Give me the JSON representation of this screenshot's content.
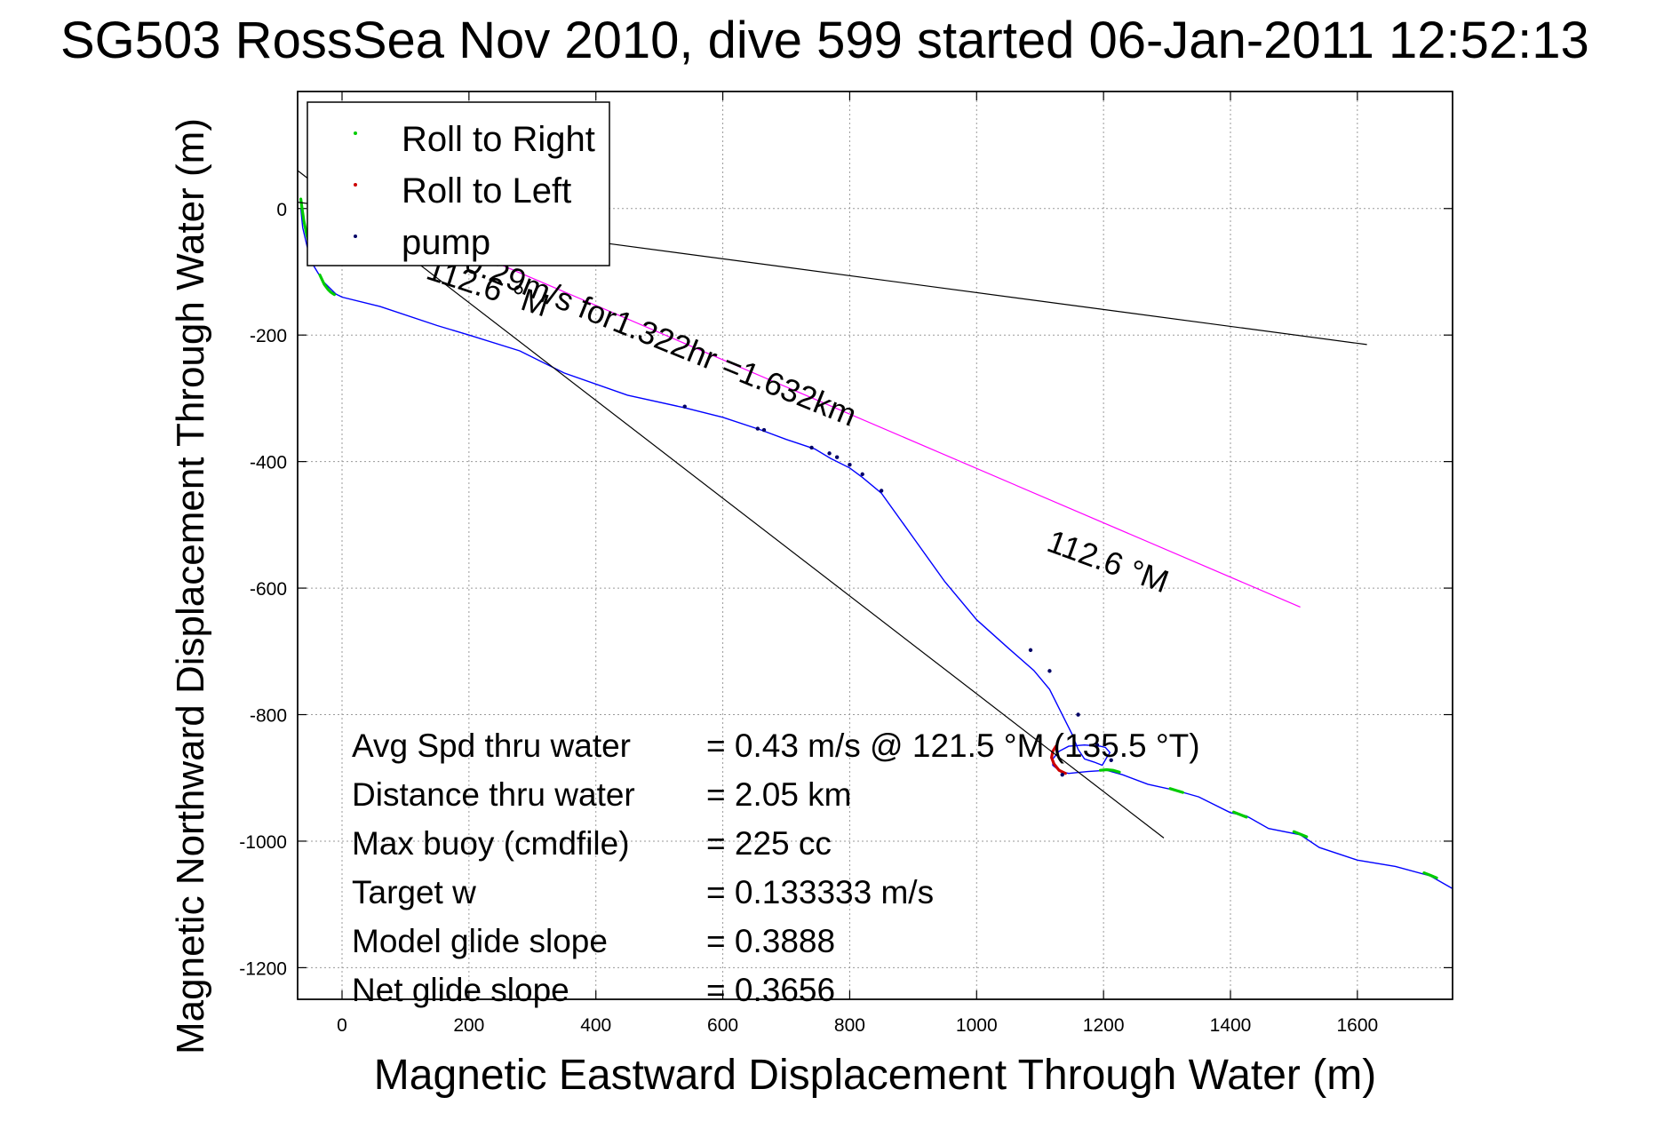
{
  "chart_data": {
    "type": "line",
    "title": "SG503 RossSea Nov 2010, dive 599 started 06-Jan-2011 12:52:13",
    "xlabel": "Magnetic Eastward Displacement Through Water (m)",
    "ylabel": "Magnetic Northward Displacement Through Water (m)",
    "xlim": [
      -70,
      1750
    ],
    "ylim": [
      -1250,
      185
    ],
    "xticks": [
      0,
      200,
      400,
      600,
      800,
      1000,
      1200,
      1400,
      1600
    ],
    "yticks": [
      0,
      -200,
      -400,
      -600,
      -800,
      -1000,
      -1200
    ],
    "grid": true,
    "legend": {
      "placement": "top-left",
      "entries": [
        {
          "label": "Roll to Right",
          "color": "#00cc00"
        },
        {
          "label": "Roll to Left",
          "color": "#cc0000"
        },
        {
          "label": "pump",
          "color": "#000066"
        }
      ]
    },
    "series": [
      {
        "name": "track",
        "color": "#0000ff",
        "x": [
          -65,
          -62,
          -55,
          -45,
          -30,
          -10,
          0,
          60,
          150,
          200,
          280,
          350,
          450,
          540,
          600,
          660,
          700,
          745,
          770,
          800,
          820,
          850,
          900,
          950,
          1000,
          1050,
          1090,
          1115,
          1130,
          1150,
          1160,
          1170,
          1185,
          1198,
          1205,
          1210,
          1203,
          1195,
          1170,
          1145,
          1130,
          1120,
          1120,
          1132,
          1145,
          1175,
          1205,
          1230,
          1270,
          1315,
          1350,
          1400,
          1425,
          1460,
          1510,
          1540,
          1600,
          1660,
          1715,
          1750
        ],
        "y": [
          0,
          -30,
          -60,
          -90,
          -115,
          -135,
          -140,
          -155,
          -185,
          -200,
          -225,
          -260,
          -295,
          -315,
          -330,
          -350,
          -365,
          -380,
          -395,
          -410,
          -425,
          -450,
          -520,
          -590,
          -650,
          -695,
          -730,
          -760,
          -790,
          -830,
          -855,
          -870,
          -875,
          -880,
          -868,
          -860,
          -852,
          -850,
          -848,
          -850,
          -858,
          -870,
          -880,
          -890,
          -893,
          -890,
          -888,
          -895,
          -910,
          -920,
          -930,
          -955,
          -960,
          -980,
          -990,
          -1010,
          -1030,
          -1040,
          -1055,
          -1075
        ]
      },
      {
        "name": "Roll to Right",
        "color": "#00cc00",
        "segments": [
          {
            "x": [
              -65,
              -63,
              -60,
              -56,
              -52,
              -52
            ],
            "y": [
              15,
              0,
              -20,
              -40,
              -55,
              -65
            ]
          },
          {
            "x": [
              -35,
              -28,
              -22,
              -18,
              -12
            ],
            "y": [
              -105,
              -120,
              -128,
              -132,
              -136
            ]
          },
          {
            "x": [
              1195,
              1205,
              1215,
              1225
            ],
            "y": [
              -888,
              -887,
              -888,
              -891
            ]
          },
          {
            "x": [
              1305,
              1315,
              1325
            ],
            "y": [
              -917,
              -920,
              -923
            ]
          },
          {
            "x": [
              1405,
              1415,
              1425
            ],
            "y": [
              -954,
              -958,
              -962
            ]
          },
          {
            "x": [
              1500,
              1510,
              1520
            ],
            "y": [
              -985,
              -989,
              -993
            ]
          },
          {
            "x": [
              1705,
              1715,
              1725
            ],
            "y": [
              -1050,
              -1054,
              -1058
            ]
          }
        ]
      },
      {
        "name": "Roll to Left",
        "color": "#cc0000",
        "segments": [
          {
            "x": [
              1125,
              1120,
              1118,
              1122,
              1130,
              1140
            ],
            "y": [
              -850,
              -858,
              -868,
              -878,
              -888,
              -893
            ]
          }
        ]
      },
      {
        "name": "pump",
        "color": "#000066",
        "points": {
          "x": [
            540,
            655,
            665,
            740,
            768,
            780,
            800,
            820,
            850,
            1085,
            1115,
            1160,
            1190,
            1212,
            1135
          ],
          "y": [
            -313,
            -348,
            -350,
            -378,
            -387,
            -393,
            -405,
            -420,
            -446,
            -698,
            -731,
            -800,
            -848,
            -872,
            -895
          ]
        }
      },
      {
        "name": "heading line 1",
        "color": "#000000",
        "x": [
          -70,
          1615
        ],
        "y": [
          10,
          -215
        ]
      },
      {
        "name": "heading line 2",
        "color": "#000000",
        "x": [
          -70,
          1295
        ],
        "y": [
          60,
          -995
        ]
      },
      {
        "name": "current line",
        "color": "#ff00ff",
        "x": [
          160,
          1510
        ],
        "y": [
          -50,
          -630
        ]
      }
    ],
    "annotations": [
      {
        "id": "rate",
        "text": "0.29m/s for1.322hr =1.632km",
        "x": 190,
        "y": -97,
        "rotate": 22
      },
      {
        "id": "h1",
        "text": "112.6 °M",
        "x": 130,
        "y": -110,
        "rotate": 18
      },
      {
        "id": "h2",
        "text": "112.6 °M",
        "x": 1108,
        "y": -540,
        "rotate": 20
      }
    ],
    "stats": {
      "rows": [
        {
          "label": "Avg Spd thru water",
          "value": "=  0.43 m/s @ 121.5 °M (135.5 °T)"
        },
        {
          "label": "Distance thru water",
          "value": "=  2.05 km"
        },
        {
          "label": "Max buoy (cmdfile)",
          "value": "= 225 cc"
        },
        {
          "label": "Target w",
          "value": "= 0.133333 m/s"
        },
        {
          "label": "Model glide slope",
          "value": "= 0.3888"
        },
        {
          "label": "Net glide slope",
          "value": "= 0.3656"
        }
      ]
    }
  }
}
